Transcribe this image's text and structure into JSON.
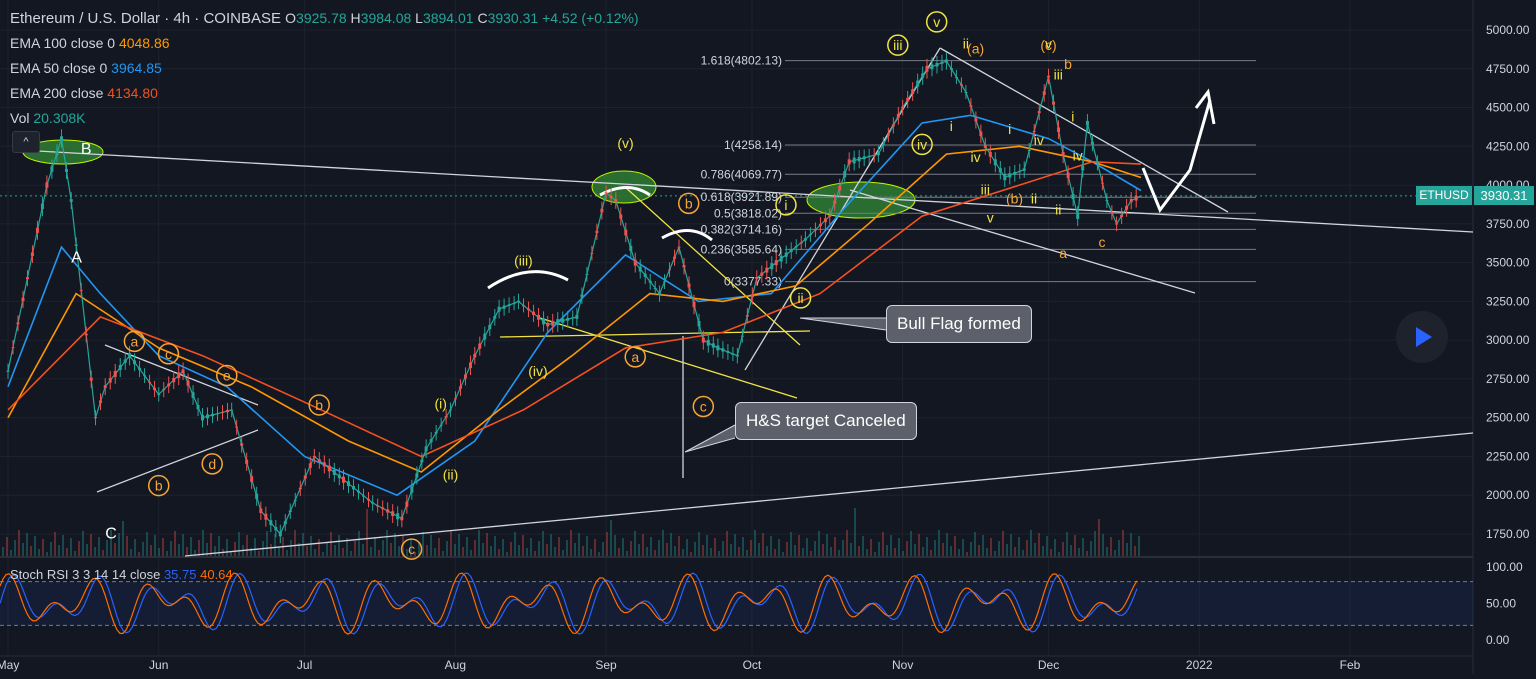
{
  "header": {
    "title": "Ethereum / U.S. Dollar",
    "interval": "4h",
    "exchange": "COINBASE",
    "ohlc": {
      "o_label": "O",
      "o": "3925.78",
      "h_label": "H",
      "h": "3984.08",
      "l_label": "L",
      "l": "3894.01",
      "c_label": "C",
      "c": "3930.31",
      "change": "+4.52 (+0.12%)"
    }
  },
  "indicators": [
    {
      "label": "EMA 100 close 0",
      "value": "4048.86",
      "color": "#ff9800"
    },
    {
      "label": "EMA 50 close 0",
      "value": "3964.85",
      "color": "#2196f3"
    },
    {
      "label": "EMA 200 close",
      "value": "4134.80",
      "color": "#f4511e"
    },
    {
      "label": "Vol",
      "value": "20.308K",
      "color": "#26a69a"
    }
  ],
  "collapse_icon": "^",
  "stoch": {
    "label": "Stoch RSI 3 3 14 14 close",
    "k": "35.75",
    "d": "40.64",
    "k_color": "#2962ff",
    "d_color": "#ff6d00"
  },
  "price_tag": {
    "symbol": "ETHUSD",
    "value": "3930.31",
    "color": "#26a69a"
  },
  "callouts": {
    "bull_flag": "Bull Flag formed",
    "hs_target": "H&S target Canceled"
  },
  "colors": {
    "bg": "#131722",
    "up": "#26a69a",
    "down": "#ef5350",
    "ema50": "#2196f3",
    "ema100": "#ff9800",
    "ema200": "#f4511e",
    "wave_yellow": "#f0e442",
    "wave_orange": "#f7a534",
    "zone_green": "#2e7d32"
  },
  "chart_data": {
    "type": "line",
    "main_ylim": [
      1500,
      5200
    ],
    "y_ticks": [
      5000,
      4750,
      4500,
      4250,
      4000,
      3750,
      3500,
      3250,
      3000,
      2750,
      2500,
      2250,
      2000,
      1750
    ],
    "y_tick_labels": [
      "5000.00",
      "4750.00",
      "4500.00",
      "4250.00",
      "4000.00",
      "3750.00",
      "3500.00",
      "3250.00",
      "3000.00",
      "2750.00",
      "2500.00",
      "2250.00",
      "2000.00",
      "1750.00"
    ],
    "x_ticks": [
      "2021-05-01",
      "2021-06-01",
      "2021-07-01",
      "2021-08-01",
      "2021-09-01",
      "2021-10-01",
      "2021-11-01",
      "2021-12-01",
      "2022-01-01",
      "2022-02-01"
    ],
    "x_tick_labels": [
      "May",
      "Jun",
      "Jul",
      "Aug",
      "Sep",
      "Oct",
      "Nov",
      "Dec",
      "2022",
      "Feb"
    ],
    "stoch_ylim": [
      0,
      100
    ],
    "stoch_ticks": [
      100,
      50,
      0
    ],
    "stoch_tick_labels": [
      "100.00",
      "50.00",
      "0.00"
    ],
    "price_path": {
      "x": [
        "2021-05-01",
        "2021-05-05",
        "2021-05-09",
        "2021-05-12",
        "2021-05-14",
        "2021-05-19",
        "2021-05-21",
        "2021-05-26",
        "2021-06-01",
        "2021-06-06",
        "2021-06-10",
        "2021-06-16",
        "2021-06-22",
        "2021-06-26",
        "2021-07-03",
        "2021-07-09",
        "2021-07-15",
        "2021-07-21",
        "2021-07-26",
        "2021-07-31",
        "2021-08-05",
        "2021-08-10",
        "2021-08-14",
        "2021-08-20",
        "2021-08-26",
        "2021-09-01",
        "2021-09-03",
        "2021-09-07",
        "2021-09-12",
        "2021-09-16",
        "2021-09-21",
        "2021-09-24",
        "2021-09-28",
        "2021-10-02",
        "2021-10-06",
        "2021-10-12",
        "2021-10-17",
        "2021-10-21",
        "2021-10-27",
        "2021-11-01",
        "2021-11-06",
        "2021-11-10",
        "2021-11-14",
        "2021-11-18",
        "2021-11-22",
        "2021-11-26",
        "2021-12-01",
        "2021-12-04",
        "2021-12-07",
        "2021-12-09",
        "2021-12-13",
        "2021-12-15",
        "2021-12-18",
        "2021-12-20"
      ],
      "y": [
        2800,
        3400,
        4000,
        4300,
        3900,
        2500,
        2700,
        2900,
        2650,
        2800,
        2500,
        2550,
        1900,
        1750,
        2250,
        2100,
        1950,
        1850,
        2300,
        2550,
        2900,
        3200,
        3250,
        3100,
        3150,
        3950,
        3900,
        3500,
        3300,
        3600,
        3000,
        2950,
        2900,
        3400,
        3500,
        3650,
        3800,
        4150,
        4200,
        4500,
        4750,
        4800,
        4600,
        4250,
        4050,
        4100,
        4700,
        4200,
        3800,
        4400,
        3900,
        3750,
        3900,
        3930
      ]
    },
    "ema50": {
      "x": [
        "2021-05-01",
        "2021-05-12",
        "2021-05-20",
        "2021-06-01",
        "2021-06-15",
        "2021-07-01",
        "2021-07-20",
        "2021-08-05",
        "2021-08-20",
        "2021-09-05",
        "2021-09-20",
        "2021-10-05",
        "2021-10-20",
        "2021-11-05",
        "2021-11-15",
        "2021-12-01",
        "2021-12-10",
        "2021-12-20"
      ],
      "y": [
        2700,
        3600,
        3300,
        2900,
        2700,
        2250,
        2000,
        2350,
        3050,
        3550,
        3250,
        3300,
        3850,
        4400,
        4450,
        4300,
        4150,
        3965
      ]
    },
    "ema100": {
      "x": [
        "2021-05-01",
        "2021-05-15",
        "2021-06-01",
        "2021-06-20",
        "2021-07-10",
        "2021-07-25",
        "2021-08-10",
        "2021-08-25",
        "2021-09-10",
        "2021-09-25",
        "2021-10-10",
        "2021-10-25",
        "2021-11-10",
        "2021-11-25",
        "2021-12-10",
        "2021-12-20"
      ],
      "y": [
        2500,
        3300,
        2950,
        2700,
        2350,
        2150,
        2550,
        2900,
        3300,
        3250,
        3350,
        3750,
        4200,
        4250,
        4150,
        4049
      ]
    },
    "ema200": {
      "x": [
        "2021-05-01",
        "2021-05-20",
        "2021-06-10",
        "2021-07-01",
        "2021-07-25",
        "2021-08-15",
        "2021-09-05",
        "2021-09-25",
        "2021-10-15",
        "2021-11-05",
        "2021-11-25",
        "2021-12-10",
        "2021-12-20"
      ],
      "y": [
        2550,
        3150,
        2900,
        2600,
        2250,
        2550,
        2950,
        3050,
        3300,
        3800,
        4000,
        4150,
        4135
      ]
    },
    "fib_levels": [
      {
        "label": "1.618(4802.13)",
        "value": 4802.13
      },
      {
        "label": "1(4258.14)",
        "value": 4258.14
      },
      {
        "label": "0.786(4069.77)",
        "value": 4069.77
      },
      {
        "label": "0.618(3921.89)",
        "value": 3921.89
      },
      {
        "label": "0.5(3818.02)",
        "value": 3818.02
      },
      {
        "label": "0.382(3714.16)",
        "value": 3714.16
      },
      {
        "label": "0.236(3585.64)",
        "value": 3585.64
      },
      {
        "label": "0(3377.33)",
        "value": 3377.33
      }
    ],
    "price_labels": {
      "A": "A",
      "B": "B",
      "C": "C"
    },
    "wave_labels": [
      {
        "text": "a",
        "x": "2021-05-27",
        "y": 2960,
        "style": "orange-circle"
      },
      {
        "text": "c",
        "x": "2021-06-03",
        "y": 2880,
        "style": "orange-circle"
      },
      {
        "text": "e",
        "x": "2021-06-15",
        "y": 2740,
        "style": "orange-circle"
      },
      {
        "text": "d",
        "x": "2021-06-12",
        "y": 2170,
        "style": "orange-circle"
      },
      {
        "text": "b",
        "x": "2021-06-01",
        "y": 2030,
        "style": "orange-circle"
      },
      {
        "text": "b",
        "x": "2021-07-04",
        "y": 2550,
        "style": "orange-circle"
      },
      {
        "text": "c",
        "x": "2021-07-23",
        "y": 1620,
        "style": "orange-circle"
      },
      {
        "text": "(i)",
        "x": "2021-07-29",
        "y": 2560,
        "style": "yellow-plain"
      },
      {
        "text": "(ii)",
        "x": "2021-07-31",
        "y": 2100,
        "style": "yellow-plain"
      },
      {
        "text": "(iii)",
        "x": "2021-08-15",
        "y": 3480,
        "style": "yellow-plain"
      },
      {
        "text": "(iv)",
        "x": "2021-08-18",
        "y": 2770,
        "style": "yellow-plain"
      },
      {
        "text": "(v)",
        "x": "2021-09-05",
        "y": 4240,
        "style": "yellow-plain"
      },
      {
        "text": "b",
        "x": "2021-09-18",
        "y": 3850,
        "style": "orange-circle"
      },
      {
        "text": "a",
        "x": "2021-09-07",
        "y": 2860,
        "style": "orange-circle"
      },
      {
        "text": "c",
        "x": "2021-09-21",
        "y": 2540,
        "style": "orange-circle"
      },
      {
        "text": "i",
        "x": "2021-10-08",
        "y": 3840,
        "style": "yellow-circle"
      },
      {
        "text": "ii",
        "x": "2021-10-11",
        "y": 3240,
        "style": "yellow-circle"
      },
      {
        "text": "iii",
        "x": "2021-10-31",
        "y": 4870,
        "style": "yellow-circle"
      },
      {
        "text": "iv",
        "x": "2021-11-05",
        "y": 4230,
        "style": "yellow-circle"
      },
      {
        "text": "v",
        "x": "2021-11-08",
        "y": 5020,
        "style": "yellow-circle"
      },
      {
        "text": "ii",
        "x": "2021-11-14",
        "y": 4880,
        "style": "yellow-plain"
      },
      {
        "text": "(a)",
        "x": "2021-11-16",
        "y": 4850,
        "style": "orange-plain"
      },
      {
        "text": "i",
        "x": "2021-11-11",
        "y": 4350,
        "style": "yellow-plain"
      },
      {
        "text": "iv",
        "x": "2021-11-16",
        "y": 4150,
        "style": "yellow-plain"
      },
      {
        "text": "iii",
        "x": "2021-11-18",
        "y": 3940,
        "style": "yellow-plain"
      },
      {
        "text": "v",
        "x": "2021-11-19",
        "y": 3760,
        "style": "yellow-plain"
      },
      {
        "text": "i",
        "x": "2021-11-23",
        "y": 4330,
        "style": "yellow-plain"
      },
      {
        "text": "(b)",
        "x": "2021-11-24",
        "y": 3880,
        "style": "orange-plain"
      },
      {
        "text": "ii",
        "x": "2021-11-28",
        "y": 3880,
        "style": "yellow-plain"
      },
      {
        "text": "iv",
        "x": "2021-11-29",
        "y": 4260,
        "style": "yellow-plain"
      },
      {
        "text": "(c)",
        "x": "2021-12-01",
        "y": 4870,
        "style": "orange-plain"
      },
      {
        "text": "v",
        "x": "2021-12-01",
        "y": 4880,
        "style": "yellow-plain"
      },
      {
        "text": "iii",
        "x": "2021-12-03",
        "y": 4680,
        "style": "yellow-plain"
      },
      {
        "text": "b",
        "x": "2021-12-05",
        "y": 4750,
        "style": "orange-plain"
      },
      {
        "text": "i",
        "x": "2021-12-06",
        "y": 4410,
        "style": "yellow-plain"
      },
      {
        "text": "iv",
        "x": "2021-12-07",
        "y": 4160,
        "style": "yellow-plain"
      },
      {
        "text": "ii",
        "x": "2021-12-03",
        "y": 3810,
        "style": "yellow-plain"
      },
      {
        "text": "a",
        "x": "2021-12-04",
        "y": 3530,
        "style": "orange-plain"
      },
      {
        "text": "c",
        "x": "2021-12-12",
        "y": 3600,
        "style": "orange-plain"
      }
    ]
  }
}
